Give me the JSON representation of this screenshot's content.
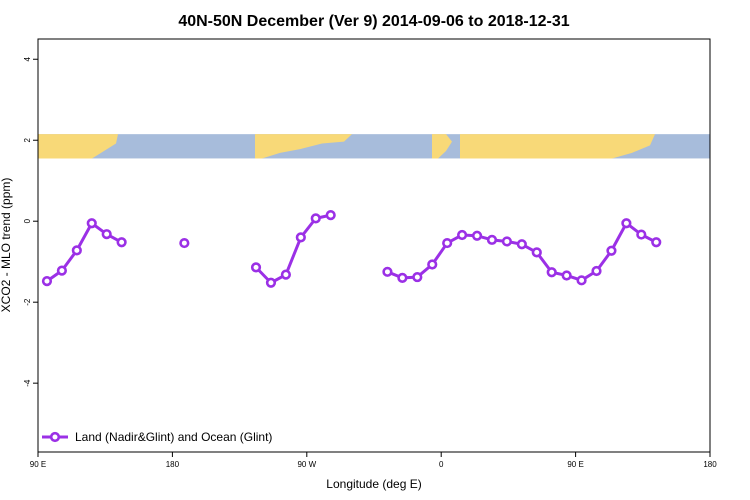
{
  "chart_data": {
    "type": "line",
    "title": "40N-50N December (Ver 9)   2014-09-06 to 2018-12-31",
    "xlabel": "Longitude (deg E)",
    "ylabel": "XCO2 - MLO trend (ppm)",
    "x_ticks": [
      {
        "value": 90,
        "label": "90 E"
      },
      {
        "value": 180,
        "label": "180"
      },
      {
        "value": 270,
        "label": "90 W"
      },
      {
        "value": 360,
        "label": "0"
      },
      {
        "value": 450,
        "label": "90 E"
      },
      {
        "value": 540,
        "label": "180"
      }
    ],
    "y_ticks": [
      {
        "value": -4,
        "label": "-4"
      },
      {
        "value": -2,
        "label": "-2"
      },
      {
        "value": 0,
        "label": "0"
      },
      {
        "value": 2,
        "label": "2"
      },
      {
        "value": 4,
        "label": "4"
      }
    ],
    "xlim": [
      90,
      540
    ],
    "ylim": [
      -5.7,
      4.5
    ],
    "map_band": {
      "y_range": [
        1.55,
        2.15
      ],
      "land_color": "#F8D978",
      "ocean_color": "#A7BCDB"
    },
    "legend": {
      "position": "bottom-left"
    },
    "grid": false,
    "series": [
      {
        "name": "Land (Nadir&Glint) and Ocean (Glint)",
        "color": "#9B30E6",
        "points": [
          [
            96,
            -1.48
          ],
          [
            106,
            -1.22
          ],
          [
            116,
            -0.72
          ],
          [
            126,
            -0.05
          ],
          [
            136,
            -0.32
          ],
          [
            146,
            -0.52
          ],
          null,
          [
            188,
            -0.54
          ],
          null,
          [
            236,
            -1.14
          ],
          [
            246,
            -1.52
          ],
          [
            256,
            -1.32
          ],
          [
            266,
            -0.4
          ],
          [
            276,
            0.07
          ],
          [
            286,
            0.15
          ],
          null,
          [
            324,
            -1.25
          ],
          [
            334,
            -1.4
          ],
          [
            344,
            -1.38
          ],
          [
            354,
            -1.07
          ],
          [
            364,
            -0.54
          ],
          [
            374,
            -0.34
          ],
          [
            384,
            -0.36
          ],
          [
            394,
            -0.46
          ],
          [
            404,
            -0.5
          ],
          [
            414,
            -0.57
          ],
          [
            424,
            -0.77
          ],
          [
            434,
            -1.26
          ],
          [
            444,
            -1.34
          ],
          [
            454,
            -1.46
          ],
          [
            464,
            -1.23
          ],
          [
            474,
            -0.73
          ],
          [
            484,
            -0.05
          ],
          [
            494,
            -0.33
          ],
          [
            504,
            -0.52
          ]
        ]
      }
    ]
  }
}
